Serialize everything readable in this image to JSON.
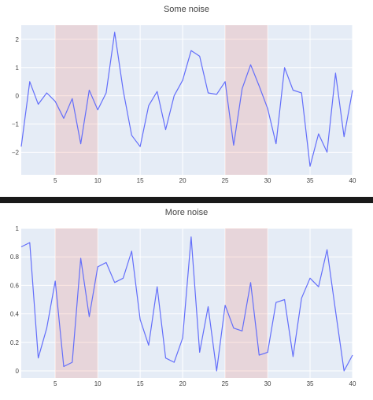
{
  "colors": {
    "plot_background": "#e5ecf6",
    "grid": "#ffffff",
    "line": "#636efa",
    "highlight": "#ef553b",
    "divider": "#1a1a1a"
  },
  "chart_data": [
    {
      "type": "line",
      "title": "Some noise",
      "xlabel": "",
      "ylabel": "",
      "xlim": [
        1,
        40
      ],
      "ylim": [
        -2.8,
        2.5
      ],
      "x_ticks": [
        5,
        10,
        15,
        20,
        25,
        30,
        35,
        40
      ],
      "y_ticks": [
        -2,
        -1,
        0,
        1,
        2
      ],
      "grid": true,
      "highlighted_ranges": [
        [
          5,
          10
        ],
        [
          25,
          30
        ]
      ],
      "series": [
        {
          "x": [
            1,
            2,
            3,
            4,
            5,
            6,
            7,
            8,
            9,
            10,
            11,
            12,
            13,
            14,
            15,
            16,
            17,
            18,
            19,
            20,
            21,
            22,
            23,
            24,
            25,
            26,
            27,
            28,
            29,
            30,
            31,
            32,
            33,
            34,
            35,
            36,
            37,
            38,
            39,
            40
          ],
          "values": [
            -1.8,
            0.5,
            -0.3,
            0.1,
            -0.2,
            -0.8,
            -0.1,
            -1.7,
            0.2,
            -0.5,
            0.1,
            2.25,
            0.2,
            -1.4,
            -1.8,
            -0.35,
            0.15,
            -1.2,
            0.0,
            0.55,
            1.6,
            1.4,
            0.1,
            0.05,
            0.5,
            -1.75,
            0.25,
            1.1,
            0.35,
            -0.45,
            -1.7,
            1.0,
            0.2,
            0.1,
            -2.5,
            -1.35,
            -2.0,
            0.8,
            -1.45,
            0.2
          ]
        }
      ]
    },
    {
      "type": "line",
      "title": "More noise",
      "xlabel": "",
      "ylabel": "",
      "xlim": [
        1,
        40
      ],
      "ylim": [
        -0.05,
        1.0
      ],
      "x_ticks": [
        5,
        10,
        15,
        20,
        25,
        30,
        35,
        40
      ],
      "y_ticks": [
        0,
        0.2,
        0.4,
        0.6,
        0.8,
        1
      ],
      "grid": true,
      "highlighted_ranges": [
        [
          5,
          10
        ],
        [
          25,
          30
        ]
      ],
      "series": [
        {
          "x": [
            1,
            2,
            3,
            4,
            5,
            6,
            7,
            8,
            9,
            10,
            11,
            12,
            13,
            14,
            15,
            16,
            17,
            18,
            19,
            20,
            21,
            22,
            23,
            24,
            25,
            26,
            27,
            28,
            29,
            30,
            31,
            32,
            33,
            34,
            35,
            36,
            37,
            38,
            39,
            40
          ],
          "values": [
            0.87,
            0.9,
            0.09,
            0.3,
            0.63,
            0.03,
            0.06,
            0.79,
            0.38,
            0.73,
            0.76,
            0.62,
            0.65,
            0.84,
            0.36,
            0.18,
            0.59,
            0.09,
            0.06,
            0.23,
            0.94,
            0.13,
            0.45,
            0.0,
            0.46,
            0.3,
            0.28,
            0.62,
            0.11,
            0.13,
            0.48,
            0.5,
            0.1,
            0.51,
            0.65,
            0.59,
            0.85,
            0.42,
            0.0,
            0.11
          ]
        }
      ]
    }
  ]
}
